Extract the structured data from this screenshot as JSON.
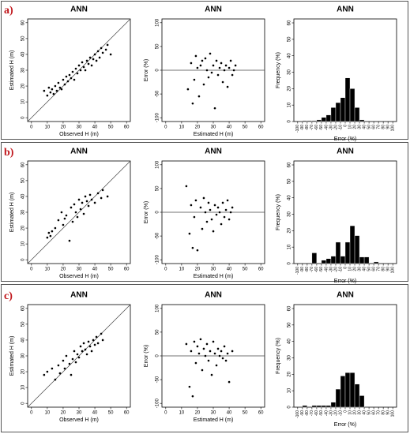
{
  "panel_labels": [
    "a)",
    "b)",
    "c)"
  ],
  "chart_data": [
    {
      "type": "scatter",
      "title": "ANN",
      "xlabel": "Observed H (m)",
      "ylabel": "Estimated H (m)",
      "diagonal": true,
      "x": [
        8,
        10,
        11,
        12,
        13,
        14,
        15,
        16,
        17,
        18,
        19,
        20,
        21,
        22,
        23,
        24,
        25,
        26,
        27,
        28,
        29,
        30,
        31,
        32,
        33,
        34,
        35,
        36,
        37,
        38,
        39,
        40,
        41,
        42,
        43,
        44,
        45,
        47,
        48,
        50
      ],
      "values": [
        17,
        14,
        19,
        16,
        18,
        15,
        20,
        17,
        22,
        19,
        18,
        24,
        21,
        26,
        23,
        27,
        25,
        29,
        24,
        31,
        28,
        33,
        30,
        35,
        32,
        30,
        36,
        34,
        38,
        33,
        37,
        40,
        36,
        42,
        38,
        44,
        41,
        43,
        46,
        40
      ],
      "xlim": [
        -2.4,
        62.4
      ],
      "ylim": [
        -2.4,
        62.4
      ],
      "xticks": [
        0,
        10,
        20,
        30,
        40,
        50,
        60
      ],
      "yticks": [
        0,
        10,
        20,
        30,
        40,
        50,
        60
      ]
    },
    {
      "type": "scatter",
      "title": "ANN",
      "xlabel": "Estimated H (m)",
      "ylabel": "Error (%)",
      "reference_line": 0,
      "x": [
        14,
        16,
        17,
        18,
        19,
        20,
        21,
        22,
        23,
        24,
        25,
        26,
        27,
        28,
        29,
        30,
        31,
        32,
        33,
        34,
        35,
        36,
        37,
        38,
        39,
        40,
        41,
        42,
        43,
        44
      ],
      "values": [
        -40,
        15,
        -70,
        -20,
        30,
        5,
        -55,
        10,
        20,
        -30,
        25,
        0,
        -15,
        35,
        -5,
        10,
        -80,
        20,
        -10,
        5,
        15,
        -25,
        0,
        10,
        -35,
        5,
        20,
        -10,
        0,
        10
      ],
      "xlim": [
        -2.4,
        62.4
      ],
      "ylim": [
        -108,
        108
      ],
      "xticks": [
        0,
        10,
        20,
        30,
        40,
        50,
        60
      ],
      "yticks": [
        -100,
        -50,
        0,
        50,
        100
      ]
    },
    {
      "type": "histogram",
      "title": "ANN",
      "xlabel": "Error   (%)",
      "ylabel": "Frequency (%)",
      "bins": [
        -90,
        -80,
        -70,
        -60,
        -50,
        -40,
        -30,
        -20,
        -10,
        0,
        10,
        20,
        30,
        40
      ],
      "counts": [
        0.5,
        0.5,
        0.5,
        1,
        2.5,
        4,
        8.5,
        11.5,
        14.5,
        26.5,
        20,
        8.5,
        1
      ],
      "xlim": [
        -108,
        108
      ],
      "ylim": [
        0,
        62.4
      ],
      "xticks": [
        -100,
        -90,
        -80,
        -70,
        -60,
        -50,
        -40,
        -30,
        -20,
        -10,
        0,
        10,
        20,
        30,
        40,
        50,
        60,
        70,
        80,
        90,
        100
      ],
      "yticks": [
        0,
        10,
        20,
        30,
        40,
        50,
        60
      ]
    },
    {
      "type": "scatter",
      "title": "ANN",
      "xlabel": "Observed H (m)",
      "ylabel": "Estimated H (m)",
      "diagonal": true,
      "x": [
        10,
        11,
        12,
        13,
        15,
        17,
        19,
        20,
        21,
        22,
        24,
        25,
        26,
        27,
        28,
        29,
        30,
        31,
        32,
        33,
        34,
        35,
        36,
        37,
        38,
        40,
        42,
        44,
        45,
        48
      ],
      "values": [
        14,
        17,
        15,
        18,
        20,
        25,
        30,
        22,
        26,
        28,
        12,
        33,
        24,
        35,
        30,
        27,
        38,
        32,
        36,
        29,
        40,
        37,
        34,
        41,
        38,
        36,
        42,
        39,
        44,
        40
      ],
      "xlim": [
        -2.4,
        62.4
      ],
      "ylim": [
        -2.4,
        62.4
      ],
      "xticks": [
        0,
        10,
        20,
        30,
        40,
        50,
        60
      ],
      "yticks": [
        0,
        10,
        20,
        30,
        40,
        50,
        60
      ]
    },
    {
      "type": "scatter",
      "title": "ANN",
      "xlabel": "Estimated H (m)",
      "ylabel": "Error (%)",
      "reference_line": 0,
      "x": [
        13,
        15,
        16,
        17,
        18,
        19,
        20,
        22,
        23,
        24,
        25,
        26,
        27,
        28,
        29,
        30,
        31,
        32,
        33,
        34,
        35,
        36,
        37,
        38,
        39,
        40,
        41,
        42
      ],
      "values": [
        55,
        -45,
        15,
        -75,
        -10,
        25,
        -80,
        10,
        -35,
        30,
        0,
        -20,
        20,
        5,
        -15,
        -40,
        15,
        -5,
        10,
        0,
        -25,
        20,
        -10,
        5,
        25,
        -15,
        0,
        10
      ],
      "xlim": [
        -2.4,
        62.4
      ],
      "ylim": [
        -108,
        108
      ],
      "xticks": [
        0,
        10,
        20,
        30,
        40,
        50,
        60
      ],
      "yticks": [
        -100,
        -50,
        0,
        50,
        100
      ]
    },
    {
      "type": "histogram",
      "title": "ANN",
      "xlabel": "Error   (%)",
      "ylabel": "Frequency (%)",
      "bins": [
        -70,
        -60,
        -50,
        -40,
        -30,
        -20,
        -10,
        0,
        10,
        20,
        30,
        40,
        50,
        60,
        70
      ],
      "counts": [
        6.5,
        0,
        2,
        3,
        4.5,
        13,
        4.5,
        13,
        23,
        17,
        4,
        4,
        0,
        1
      ],
      "xlim": [
        -108,
        108
      ],
      "ylim": [
        0,
        62.4
      ],
      "xticks": [
        -100,
        -90,
        -80,
        -70,
        -60,
        -50,
        -40,
        -30,
        -20,
        -10,
        0,
        10,
        20,
        30,
        40,
        50,
        60,
        70,
        80,
        90,
        100
      ],
      "yticks": [
        0,
        10,
        20,
        30,
        40,
        50,
        60
      ]
    },
    {
      "type": "scatter",
      "title": "ANN",
      "xlabel": "Observed H (m)",
      "ylabel": "Estimated H (m)",
      "diagonal": true,
      "x": [
        8,
        10,
        13,
        15,
        17,
        18,
        20,
        21,
        22,
        24,
        25,
        26,
        27,
        28,
        29,
        30,
        31,
        32,
        33,
        34,
        35,
        36,
        37,
        38,
        39,
        40,
        41,
        42,
        44,
        45
      ],
      "values": [
        18,
        20,
        22,
        15,
        24,
        19,
        27,
        22,
        30,
        25,
        18,
        28,
        33,
        26,
        31,
        29,
        36,
        33,
        38,
        34,
        31,
        39,
        36,
        33,
        40,
        37,
        42,
        38,
        44,
        40
      ],
      "xlim": [
        -2.4,
        62.4
      ],
      "ylim": [
        -2.4,
        62.4
      ],
      "xticks": [
        0,
        10,
        20,
        30,
        40,
        50,
        60
      ],
      "yticks": [
        0,
        10,
        20,
        30,
        40,
        50,
        60
      ]
    },
    {
      "type": "scatter",
      "title": "ANN",
      "xlabel": "Estimated H (m)",
      "ylabel": "Error (%)",
      "reference_line": 0,
      "x": [
        13,
        15,
        16,
        17,
        18,
        19,
        20,
        21,
        22,
        23,
        24,
        25,
        26,
        27,
        28,
        29,
        30,
        31,
        32,
        33,
        34,
        35,
        36,
        37,
        38,
        39,
        40,
        42
      ],
      "values": [
        25,
        -65,
        10,
        -85,
        30,
        -15,
        20,
        5,
        35,
        -30,
        15,
        0,
        25,
        -10,
        10,
        -40,
        30,
        5,
        -20,
        15,
        0,
        10,
        -5,
        20,
        -10,
        5,
        -55,
        10
      ],
      "xlim": [
        -2.4,
        62.4
      ],
      "ylim": [
        -108,
        108
      ],
      "xticks": [
        0,
        10,
        20,
        30,
        40,
        50,
        60
      ],
      "yticks": [
        -100,
        -50,
        0,
        50,
        100
      ]
    },
    {
      "type": "histogram",
      "title": "ANN",
      "xlabel": "Error   (%)",
      "ylabel": "Frequency (%)",
      "bins": [
        -90,
        -80,
        -70,
        -60,
        -50,
        -40,
        -30,
        -20,
        -10,
        0,
        10,
        20,
        30,
        40
      ],
      "counts": [
        1,
        0,
        1,
        1,
        1,
        1,
        3,
        11,
        19,
        21,
        21,
        14,
        7
      ],
      "xlim": [
        -108,
        108
      ],
      "ylim": [
        0,
        62.4
      ],
      "xticks": [
        -100,
        -90,
        -80,
        -70,
        -60,
        -50,
        -40,
        -30,
        -20,
        -10,
        0,
        10,
        20,
        30,
        40,
        50,
        60,
        70,
        80,
        90,
        100
      ],
      "yticks": [
        0,
        10,
        20,
        30,
        40,
        50,
        60
      ]
    }
  ]
}
